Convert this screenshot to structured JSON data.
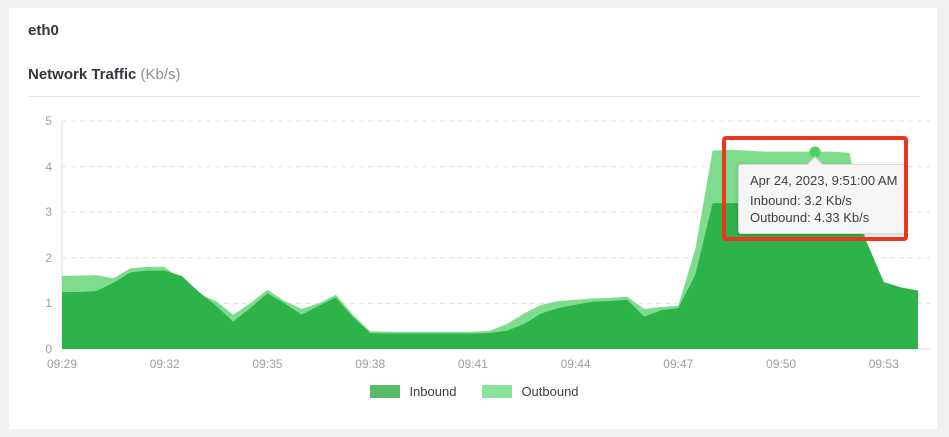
{
  "header": {
    "device": "eth0",
    "title": "Network Traffic",
    "unit": "(Kb/s)"
  },
  "colors": {
    "page_background": "#f0f1f3",
    "card_background": "#ffffff",
    "inbound_fill": "#2eb34b",
    "outbound_fill": "#7edc8c",
    "inbound_legend": "#57bb69",
    "outbound_legend": "#8ce39a",
    "marker_dot": "#4fce62",
    "annotation_red": "#e8381f",
    "gridline": "#e3e3e3",
    "axis_text": "#9b9ea2"
  },
  "chart_data": {
    "type": "area",
    "title": "Network Traffic (Kb/s)",
    "xlabel": "",
    "ylabel": "Kb/s",
    "ylim": [
      0,
      5
    ],
    "yticks": [
      0,
      1,
      2,
      3,
      4,
      5
    ],
    "xticks": [
      "09:29",
      "09:32",
      "09:35",
      "09:38",
      "09:41",
      "09:44",
      "09:47",
      "09:50",
      "09:53"
    ],
    "grid": "horizontal dashed",
    "legend_position": "bottom center",
    "x": [
      "09:29:00",
      "09:29:30",
      "09:30:00",
      "09:30:30",
      "09:31:00",
      "09:31:30",
      "09:32:00",
      "09:32:30",
      "09:33:00",
      "09:33:30",
      "09:34:00",
      "09:34:30",
      "09:35:00",
      "09:35:30",
      "09:36:00",
      "09:36:30",
      "09:37:00",
      "09:37:30",
      "09:38:00",
      "09:38:30",
      "09:39:00",
      "09:39:30",
      "09:40:00",
      "09:40:30",
      "09:41:00",
      "09:41:30",
      "09:42:00",
      "09:42:30",
      "09:43:00",
      "09:43:30",
      "09:44:00",
      "09:44:30",
      "09:45:00",
      "09:45:30",
      "09:46:00",
      "09:46:30",
      "09:47:00",
      "09:47:30",
      "09:48:00",
      "09:48:30",
      "09:49:00",
      "09:49:30",
      "09:50:00",
      "09:50:30",
      "09:51:00",
      "09:51:30",
      "09:52:00",
      "09:52:30",
      "09:53:00",
      "09:53:30",
      "09:54:00"
    ],
    "series": [
      {
        "name": "Inbound",
        "color": "#2eb34b",
        "legend_color": "#57bb69",
        "values": [
          1.25,
          1.25,
          1.27,
          1.45,
          1.68,
          1.72,
          1.72,
          1.6,
          1.25,
          0.95,
          0.6,
          0.9,
          1.22,
          1.0,
          0.75,
          0.95,
          1.13,
          0.7,
          0.35,
          0.34,
          0.34,
          0.34,
          0.34,
          0.34,
          0.34,
          0.35,
          0.4,
          0.55,
          0.78,
          0.9,
          0.97,
          1.04,
          1.05,
          1.08,
          0.71,
          0.85,
          0.9,
          1.63,
          3.2,
          3.2,
          3.2,
          3.2,
          3.2,
          3.2,
          3.2,
          3.2,
          3.2,
          2.35,
          1.47,
          1.35,
          1.28
        ]
      },
      {
        "name": "Outbound",
        "color": "#7edc8c",
        "legend_color": "#8ce39a",
        "values": [
          1.6,
          1.61,
          1.62,
          1.55,
          1.77,
          1.8,
          1.8,
          1.5,
          1.2,
          1.05,
          0.75,
          1.0,
          1.3,
          1.05,
          0.88,
          1.0,
          1.19,
          0.75,
          0.39,
          0.38,
          0.38,
          0.38,
          0.38,
          0.38,
          0.38,
          0.4,
          0.55,
          0.78,
          0.97,
          1.05,
          1.08,
          1.11,
          1.12,
          1.15,
          0.88,
          0.92,
          0.95,
          2.2,
          4.35,
          4.37,
          4.35,
          4.33,
          4.33,
          4.33,
          4.33,
          4.33,
          4.3,
          2.3,
          1.4,
          1.3,
          1.22
        ]
      }
    ]
  },
  "tooltip": {
    "date": "Apr 24, 2023, 9:51:00 AM",
    "rows": [
      {
        "text": "Inbound: 3.2 Kb/s"
      },
      {
        "text": "Outbound: 4.33 Kb/s"
      }
    ],
    "marker": {
      "series": "Outbound",
      "time": "09:51:00",
      "value": 4.33,
      "color": "#4fce62"
    }
  }
}
